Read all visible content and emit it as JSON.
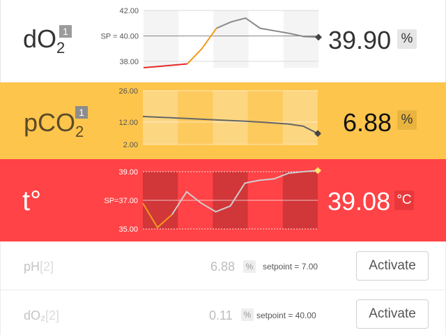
{
  "rows": [
    {
      "name_main": "dO",
      "name_sub": "2",
      "badge": "1",
      "value": "39.90",
      "unit": "%",
      "setpoint_label": "SP = 40.00",
      "y_ticks": [
        "42.00",
        "38.00"
      ],
      "colors": {
        "bg": "#ffffff",
        "text": "#333333",
        "value": "#333333",
        "unit_bg": "#e6e6e6",
        "badge_bg": "#9b9b9b"
      }
    },
    {
      "name_main": "pCO",
      "name_sub": "2",
      "badge": "1",
      "value": "6.88",
      "unit": "%",
      "setpoint_label": "",
      "y_ticks": [
        "26.00",
        "12.00",
        "2.00"
      ],
      "colors": {
        "bg": "#fdc54c",
        "text": "#5a4a2a",
        "value": "#111111",
        "unit_bg": "#e8b43f",
        "badge_bg": "#8c8c8c"
      }
    },
    {
      "name_main": "t°",
      "name_sub": "",
      "badge": "",
      "value": "39.08",
      "unit": "°C",
      "setpoint_label": "SP=37.00",
      "y_ticks": [
        "39.00",
        "35.00"
      ],
      "colors": {
        "bg": "#ff4346",
        "text": "#ffffff",
        "value": "#ffffff",
        "unit_bg": "#e8383b",
        "badge_bg": ""
      }
    }
  ],
  "inactive": [
    {
      "name": "pH",
      "index": "[2]",
      "value": "6.88",
      "unit": "%",
      "setpoint_text": "setpoint =  7.00",
      "button": "Activate"
    },
    {
      "name": "dO₂",
      "index": "[2]",
      "value": "0.11",
      "unit": "%",
      "setpoint_text": "setpoint =  40.00",
      "button": "Activate"
    }
  ],
  "chart_data": [
    {
      "type": "line",
      "title": "",
      "y_ticks": [
        42.0,
        38.0
      ],
      "ylim": [
        37.5,
        42.0
      ],
      "setpoint": 40.0,
      "x": [
        0,
        1,
        2,
        3,
        4,
        5,
        6,
        7,
        8,
        9,
        10,
        11,
        12
      ],
      "values": [
        37.5,
        37.6,
        37.7,
        37.8,
        39.0,
        40.6,
        41.1,
        41.4,
        40.6,
        40.4,
        40.2,
        39.95,
        39.9
      ]
    },
    {
      "type": "line",
      "title": "",
      "y_ticks": [
        26.0,
        12.0,
        2.0
      ],
      "ylim": [
        2.0,
        26.0
      ],
      "x": [
        0,
        1,
        2,
        3,
        4,
        5,
        6,
        7,
        8,
        9,
        10,
        11,
        12
      ],
      "values": [
        14.5,
        14.2,
        13.9,
        13.6,
        13.3,
        13.0,
        12.7,
        12.4,
        12.0,
        11.6,
        11.1,
        10.2,
        6.88
      ]
    },
    {
      "type": "line",
      "title": "",
      "y_ticks": [
        39.0,
        35.0
      ],
      "ylim": [
        35.0,
        39.0
      ],
      "setpoint": 37.0,
      "x": [
        0,
        1,
        2,
        3,
        4,
        5,
        6,
        7,
        8,
        9,
        10,
        11,
        12
      ],
      "values": [
        36.8,
        35.1,
        36.0,
        37.6,
        36.8,
        36.2,
        36.6,
        38.2,
        38.4,
        38.5,
        38.9,
        39.0,
        39.08
      ]
    }
  ]
}
